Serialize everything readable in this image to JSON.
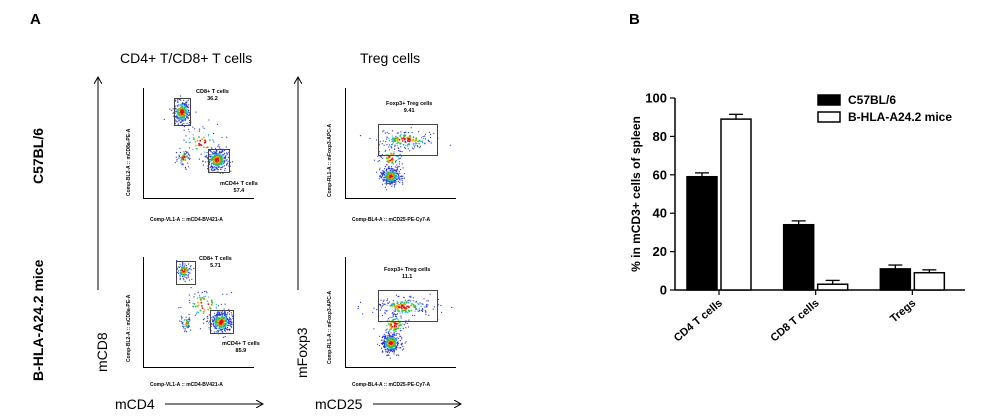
{
  "panel_a": {
    "letter": "A",
    "columns": [
      {
        "title": "CD4+ T/CD8+ T cells"
      },
      {
        "title": "Treg cells"
      }
    ],
    "rows": [
      {
        "label": "C57BL/6"
      },
      {
        "label": "B-HLA-A24.2 mice"
      }
    ],
    "axes": {
      "cd_y": "mCD8",
      "cd_x": "mCD4",
      "treg_y": "mFoxp3",
      "treg_x": "mCD25"
    },
    "plots": [
      {
        "xlabel": "Comp-VL1-A :: mCD4-BV421-A",
        "ylabel": "Comp-BL2-A :: mCD8a-PE-A",
        "gates": [
          {
            "name": "CD8+ T cells",
            "value": "36.2"
          },
          {
            "name": "mCD4+ T cells",
            "value": "57.4"
          }
        ]
      },
      {
        "xlabel": "Comp-BL4-A :: mCD25-PE-Cy7-A",
        "ylabel": "Comp-RL1-A :: mFoxp3-APC-A",
        "gates": [
          {
            "name": "Foxp3+ Treg cells",
            "value": "9.41"
          }
        ]
      },
      {
        "xlabel": "Comp-VL1-A :: mCD4-BV421-A",
        "ylabel": "Comp-BL2-A :: mCD8a-PE-A",
        "gates": [
          {
            "name": "CD8+ T cells",
            "value": "5.71"
          },
          {
            "name": "mCD4+ T cells",
            "value": "85.9"
          }
        ]
      },
      {
        "xlabel": "Comp-BL4-A :: mCD25-PE-Cy7-A",
        "ylabel": "Comp-RL1-A :: mFoxp3-APC-A",
        "gates": [
          {
            "name": "Foxp3+ Treg cells",
            "value": "11.1"
          }
        ]
      }
    ]
  },
  "panel_b": {
    "letter": "B"
  },
  "chart_data": {
    "type": "bar",
    "categories": [
      "CD4 T cells",
      "CD8 T cells",
      "Tregs"
    ],
    "series": [
      {
        "name": "C57BL/6",
        "color": "#000000",
        "values": [
          59,
          34,
          11
        ],
        "errors": [
          2,
          2,
          2
        ]
      },
      {
        "name": "B-HLA-A24.2 mice",
        "color": "#ffffff",
        "values": [
          89,
          3,
          9
        ],
        "errors": [
          2.5,
          2,
          1.5
        ]
      }
    ],
    "ylabel": "% in mCD3+ cells of spleen",
    "ylim": [
      0,
      100
    ],
    "yticks": [
      0,
      20,
      40,
      60,
      80,
      100
    ],
    "legend": "top-right",
    "grid": false
  }
}
